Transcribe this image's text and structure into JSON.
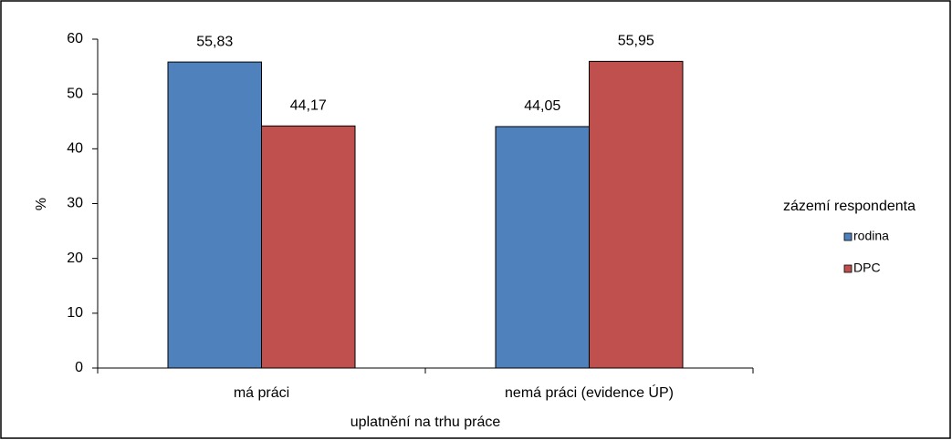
{
  "chart_data": {
    "type": "bar",
    "categories": [
      "má práci",
      "nemá práci (evidence  ÚP)"
    ],
    "series": [
      {
        "name": "rodina",
        "color": "#4f81bd",
        "values": [
          55.83,
          44.05
        ],
        "value_labels": [
          "55,83",
          "44,05"
        ]
      },
      {
        "name": "DPC",
        "color": "#c0504d",
        "values": [
          44.17,
          55.95
        ],
        "value_labels": [
          "44,17",
          "55,95"
        ]
      }
    ],
    "ylim": [
      0,
      60
    ],
    "yticks": [
      0,
      10,
      20,
      30,
      40,
      50,
      60
    ],
    "y_label": "%",
    "x_label": "uplatnění na trhu práce",
    "legend_title": "zázemí respondenta",
    "legend": "right"
  }
}
